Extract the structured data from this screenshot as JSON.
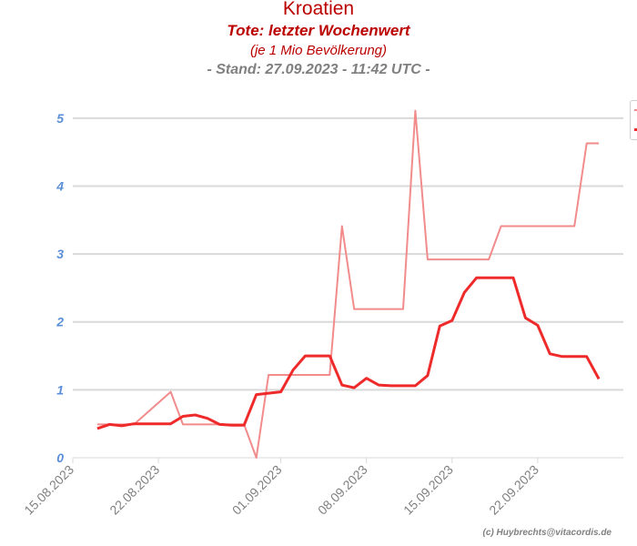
{
  "header": {
    "title": "Kroatien",
    "subtitle": "Tote: letzter Wochenwert",
    "unit_note": "(je 1 Mio Bevölkerung)",
    "stand": "- Stand: 27.09.2023 - 11:42 UTC -"
  },
  "credit": "(c) Huybrechts@vitacordis.de",
  "colors": {
    "title": "#bb0000",
    "muted": "#808080",
    "ytick": "#5b8fd9",
    "grid": "#d9d9d9",
    "series_light": "#f28b8b",
    "series_bold": "#ee2a2a"
  },
  "chart_data": {
    "type": "line",
    "title": "Tote: letzter Wochenwert",
    "ylim": [
      0,
      5.4
    ],
    "xlim": [
      "2023-08-15",
      "2023-09-29"
    ],
    "yticks": [
      "0",
      "1",
      "2",
      "3",
      "4",
      "5"
    ],
    "xticks": [
      "15.08.2023",
      "22.08.2023",
      "01.09.2023",
      "08.09.2023",
      "15.09.2023",
      "22.09.2023"
    ],
    "grid": true,
    "legend": "right",
    "series": [
      {
        "color": "#f28b8b",
        "width": 2,
        "points": [
          [
            "2023-08-17",
            0.49
          ],
          [
            "2023-08-20",
            0.49
          ],
          [
            "2023-08-23",
            0.97
          ],
          [
            "2023-08-24",
            0.49
          ],
          [
            "2023-08-29",
            0.49
          ],
          [
            "2023-08-30",
            0.0
          ],
          [
            "2023-08-31",
            1.22
          ],
          [
            "2023-09-05",
            1.22
          ],
          [
            "2023-09-06",
            3.41
          ],
          [
            "2023-09-07",
            2.19
          ],
          [
            "2023-09-11",
            2.19
          ],
          [
            "2023-09-12",
            5.11
          ],
          [
            "2023-09-13",
            2.92
          ],
          [
            "2023-09-18",
            2.92
          ],
          [
            "2023-09-19",
            3.41
          ],
          [
            "2023-09-25",
            3.41
          ],
          [
            "2023-09-26",
            4.63
          ],
          [
            "2023-09-27",
            4.63
          ]
        ]
      },
      {
        "color": "#ee2a2a",
        "width": 3,
        "points": [
          [
            "2023-08-17",
            0.43
          ],
          [
            "2023-08-18",
            0.49
          ],
          [
            "2023-08-19",
            0.47
          ],
          [
            "2023-08-20",
            0.5
          ],
          [
            "2023-08-21",
            0.5
          ],
          [
            "2023-08-22",
            0.5
          ],
          [
            "2023-08-23",
            0.5
          ],
          [
            "2023-08-24",
            0.61
          ],
          [
            "2023-08-25",
            0.63
          ],
          [
            "2023-08-26",
            0.58
          ],
          [
            "2023-08-27",
            0.49
          ],
          [
            "2023-08-28",
            0.48
          ],
          [
            "2023-08-29",
            0.48
          ],
          [
            "2023-08-30",
            0.93
          ],
          [
            "2023-08-31",
            0.95
          ],
          [
            "2023-09-01",
            0.97
          ],
          [
            "2023-09-02",
            1.29
          ],
          [
            "2023-09-03",
            1.5
          ],
          [
            "2023-09-04",
            1.5
          ],
          [
            "2023-09-05",
            1.5
          ],
          [
            "2023-09-06",
            1.07
          ],
          [
            "2023-09-07",
            1.03
          ],
          [
            "2023-09-08",
            1.17
          ],
          [
            "2023-09-09",
            1.07
          ],
          [
            "2023-09-10",
            1.06
          ],
          [
            "2023-09-11",
            1.06
          ],
          [
            "2023-09-12",
            1.06
          ],
          [
            "2023-09-13",
            1.21
          ],
          [
            "2023-09-14",
            1.94
          ],
          [
            "2023-09-15",
            2.02
          ],
          [
            "2023-09-16",
            2.43
          ],
          [
            "2023-09-17",
            2.65
          ],
          [
            "2023-09-18",
            2.65
          ],
          [
            "2023-09-19",
            2.65
          ],
          [
            "2023-09-20",
            2.65
          ],
          [
            "2023-09-21",
            2.06
          ],
          [
            "2023-09-22",
            1.95
          ],
          [
            "2023-09-23",
            1.53
          ],
          [
            "2023-09-24",
            1.49
          ],
          [
            "2023-09-25",
            1.49
          ],
          [
            "2023-09-26",
            1.49
          ],
          [
            "2023-09-27",
            1.16
          ]
        ]
      }
    ]
  }
}
